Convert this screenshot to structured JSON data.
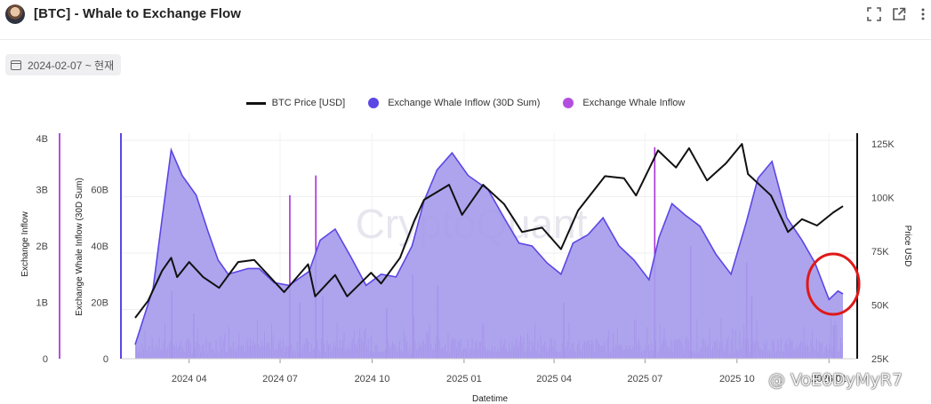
{
  "header": {
    "title": "[BTC] - Whale to Exchange Flow"
  },
  "date_range": "2024-02-07 ~ 현재",
  "watermarks": {
    "center": "CryptoQuant",
    "bottom_right": "@ VoE0DyMyR7"
  },
  "colors": {
    "price": "#111111",
    "sum30": "#5b46e6",
    "inflow": "#a832d6",
    "area_fill": "#a69cec",
    "annotation": "#e01818"
  },
  "chart_data": {
    "type": "area",
    "xlabel": "Datetime",
    "x_ticks": [
      "2024 04",
      "2024 07",
      "2024 10",
      "2025 01",
      "2025 04",
      "2025 07",
      "2025 10",
      "2026 01"
    ],
    "x_range": [
      "2024-02-07",
      "2026-01-15"
    ],
    "axes": {
      "left_outer": {
        "label": "Exchange Inflow",
        "ticks": [
          "4B",
          "3B",
          "2B",
          "1B",
          "0"
        ],
        "range": [
          0,
          4000000000
        ]
      },
      "left_inner": {
        "label": "Exchange Whale Inflow (30D Sum)",
        "ticks": [
          "60B",
          "40B",
          "20B",
          "0"
        ],
        "range": [
          0,
          80000000000
        ]
      },
      "right": {
        "label": "Price USD",
        "ticks": [
          "125K",
          "100K",
          "75K",
          "50K",
          "25K"
        ],
        "range": [
          25000,
          130000
        ]
      }
    },
    "grid": true,
    "legend_position": "top-center",
    "series": [
      {
        "name": "BTC Price [USD]",
        "type": "line",
        "axis": "right",
        "points": [
          [
            "2024-02-07",
            44000
          ],
          [
            "2024-02-20",
            52000
          ],
          [
            "2024-03-05",
            66000
          ],
          [
            "2024-03-14",
            72000
          ],
          [
            "2024-03-20",
            63000
          ],
          [
            "2024-04-01",
            70000
          ],
          [
            "2024-04-15",
            63000
          ],
          [
            "2024-05-01",
            58000
          ],
          [
            "2024-05-20",
            70000
          ],
          [
            "2024-06-05",
            71000
          ],
          [
            "2024-06-25",
            61000
          ],
          [
            "2024-07-05",
            56000
          ],
          [
            "2024-07-29",
            69000
          ],
          [
            "2024-08-05",
            54000
          ],
          [
            "2024-08-25",
            64000
          ],
          [
            "2024-09-06",
            54000
          ],
          [
            "2024-09-30",
            65000
          ],
          [
            "2024-10-10",
            60000
          ],
          [
            "2024-10-29",
            72000
          ],
          [
            "2024-11-12",
            89000
          ],
          [
            "2024-11-22",
            99000
          ],
          [
            "2024-12-17",
            106000
          ],
          [
            "2024-12-30",
            92000
          ],
          [
            "2025-01-20",
            106000
          ],
          [
            "2025-02-10",
            97000
          ],
          [
            "2025-02-28",
            84000
          ],
          [
            "2025-03-20",
            86000
          ],
          [
            "2025-04-08",
            76000
          ],
          [
            "2025-04-25",
            94000
          ],
          [
            "2025-05-22",
            110000
          ],
          [
            "2025-06-10",
            109000
          ],
          [
            "2025-06-22",
            101000
          ],
          [
            "2025-07-14",
            122000
          ],
          [
            "2025-08-01",
            114000
          ],
          [
            "2025-08-14",
            123000
          ],
          [
            "2025-09-01",
            108000
          ],
          [
            "2025-09-20",
            116000
          ],
          [
            "2025-10-06",
            125000
          ],
          [
            "2025-10-12",
            111000
          ],
          [
            "2025-11-04",
            101000
          ],
          [
            "2025-11-21",
            84000
          ],
          [
            "2025-12-05",
            90000
          ],
          [
            "2025-12-20",
            87000
          ],
          [
            "2026-01-05",
            93000
          ],
          [
            "2026-01-15",
            96000
          ]
        ]
      },
      {
        "name": "Exchange Whale Inflow (30D Sum)",
        "type": "area",
        "axis": "left_inner",
        "points": [
          [
            "2024-02-07",
            5000000000
          ],
          [
            "2024-02-25",
            25000000000
          ],
          [
            "2024-03-05",
            50000000000
          ],
          [
            "2024-03-14",
            74000000000
          ],
          [
            "2024-03-25",
            65000000000
          ],
          [
            "2024-04-08",
            58000000000
          ],
          [
            "2024-04-20",
            45000000000
          ],
          [
            "2024-04-30",
            35000000000
          ],
          [
            "2024-05-10",
            30000000000
          ],
          [
            "2024-05-30",
            32000000000
          ],
          [
            "2024-06-10",
            32000000000
          ],
          [
            "2024-06-25",
            27000000000
          ],
          [
            "2024-07-10",
            26000000000
          ],
          [
            "2024-07-30",
            31000000000
          ],
          [
            "2024-08-10",
            42000000000
          ],
          [
            "2024-08-25",
            46000000000
          ],
          [
            "2024-09-10",
            36000000000
          ],
          [
            "2024-09-25",
            26000000000
          ],
          [
            "2024-10-10",
            30000000000
          ],
          [
            "2024-10-25",
            29000000000
          ],
          [
            "2024-11-10",
            40000000000
          ],
          [
            "2024-11-22",
            56000000000
          ],
          [
            "2024-12-05",
            67000000000
          ],
          [
            "2024-12-20",
            73000000000
          ],
          [
            "2025-01-05",
            65000000000
          ],
          [
            "2025-01-25",
            60000000000
          ],
          [
            "2025-02-10",
            50000000000
          ],
          [
            "2025-02-25",
            41000000000
          ],
          [
            "2025-03-10",
            40000000000
          ],
          [
            "2025-03-25",
            34000000000
          ],
          [
            "2025-04-08",
            30000000000
          ],
          [
            "2025-04-20",
            41000000000
          ],
          [
            "2025-05-05",
            44000000000
          ],
          [
            "2025-05-20",
            50000000000
          ],
          [
            "2025-06-05",
            40000000000
          ],
          [
            "2025-06-20",
            35000000000
          ],
          [
            "2025-07-05",
            28000000000
          ],
          [
            "2025-07-15",
            43000000000
          ],
          [
            "2025-07-28",
            55000000000
          ],
          [
            "2025-08-10",
            51000000000
          ],
          [
            "2025-08-25",
            47000000000
          ],
          [
            "2025-09-10",
            37000000000
          ],
          [
            "2025-09-25",
            30000000000
          ],
          [
            "2025-10-10",
            48000000000
          ],
          [
            "2025-10-22",
            64000000000
          ],
          [
            "2025-11-05",
            70000000000
          ],
          [
            "2025-11-20",
            50000000000
          ],
          [
            "2025-12-05",
            42000000000
          ],
          [
            "2025-12-18",
            34000000000
          ],
          [
            "2026-01-01",
            21000000000
          ],
          [
            "2026-01-10",
            24000000000
          ],
          [
            "2026-01-15",
            23000000000
          ]
        ]
      },
      {
        "name": "Exchange Whale Inflow",
        "type": "bar",
        "axis": "left_outer",
        "points": [
          [
            "2024-03-14",
            1200000000
          ],
          [
            "2024-04-05",
            800000000
          ],
          [
            "2024-07-10",
            2900000000
          ],
          [
            "2024-07-20",
            1000000000
          ],
          [
            "2024-08-05",
            3250000000
          ],
          [
            "2024-08-12",
            1100000000
          ],
          [
            "2024-10-15",
            900000000
          ],
          [
            "2024-11-10",
            1500000000
          ],
          [
            "2024-12-05",
            1300000000
          ],
          [
            "2025-04-10",
            1000000000
          ],
          [
            "2025-07-10",
            3750000000
          ],
          [
            "2025-08-15",
            2000000000
          ],
          [
            "2025-10-10",
            1700000000
          ],
          [
            "2025-10-15",
            1100000000
          ],
          [
            "2026-01-05",
            600000000
          ]
        ]
      }
    ]
  }
}
